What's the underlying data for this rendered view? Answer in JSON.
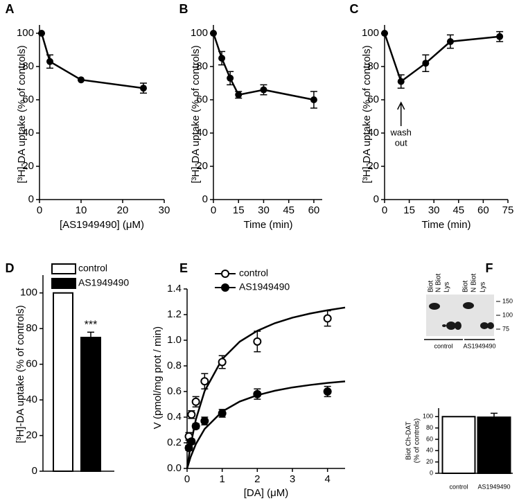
{
  "chart_data": [
    {
      "panel": "A",
      "type": "line",
      "ylabel": "[³H]-DA uptake (% of controls)",
      "xlabel": "[AS1949490] (μM)",
      "x": [
        0.5,
        2.5,
        10,
        25
      ],
      "values": [
        100,
        83,
        72,
        67
      ],
      "errors": [
        0,
        4,
        0,
        3
      ],
      "color": "#000000",
      "xlim": [
        0,
        30
      ],
      "ylim": [
        0,
        105
      ],
      "xticks": [
        0,
        10,
        20,
        30
      ],
      "yticks": [
        0,
        20,
        40,
        60,
        80,
        100
      ]
    },
    {
      "panel": "B",
      "type": "line",
      "ylabel": "[³H]-DA uptake (% of controls)",
      "xlabel": "Time (min)",
      "x": [
        0,
        5,
        10,
        15,
        30,
        60
      ],
      "values": [
        100,
        85,
        73,
        63,
        66,
        60
      ],
      "errors": [
        0,
        4,
        4,
        2,
        3,
        5
      ],
      "color": "#000000",
      "xlim": [
        0,
        65
      ],
      "ylim": [
        0,
        105
      ],
      "xticks": [
        0,
        15,
        30,
        45,
        60
      ],
      "yticks": [
        0,
        20,
        40,
        60,
        80,
        100
      ]
    },
    {
      "panel": "C",
      "type": "line",
      "ylabel": "[³H]-DA uptake (% of controls)",
      "xlabel": "Time (min)",
      "x": [
        0,
        10,
        25,
        40,
        70
      ],
      "values": [
        100,
        71,
        82,
        95,
        98
      ],
      "errors": [
        0,
        4,
        5,
        4,
        3
      ],
      "color": "#000000",
      "annotation": [
        "wash",
        "out"
      ],
      "xlim": [
        0,
        75
      ],
      "ylim": [
        0,
        105
      ],
      "xticks": [
        0,
        15,
        30,
        45,
        60,
        75
      ],
      "yticks": [
        0,
        20,
        40,
        60,
        80,
        100
      ]
    },
    {
      "panel": "D",
      "type": "bar",
      "ylabel": "[³H]-DA uptake (% of controls)",
      "categories": [
        "control",
        "AS1949490"
      ],
      "values": [
        100,
        75
      ],
      "errors": [
        0,
        3
      ],
      "colors": [
        "#ffffff",
        "#000000"
      ],
      "legend": true,
      "annotation": "***",
      "ylim": [
        0,
        110
      ],
      "yticks": [
        0,
        20,
        40,
        60,
        80,
        100
      ]
    },
    {
      "panel": "E",
      "type": "scatter",
      "ylabel": "V (pmol/mg prot / min)",
      "xlabel": "[DA] (μM)",
      "fit_x": [
        0,
        0.1,
        0.25,
        0.5,
        1,
        1.5,
        2,
        2.5,
        3,
        3.5,
        4,
        4.5
      ],
      "series": [
        {
          "name": "control",
          "color": "#ffffff",
          "x": [
            0.05,
            0.125,
            0.25,
            0.5,
            1,
            2,
            4
          ],
          "values": [
            0.25,
            0.42,
            0.52,
            0.68,
            0.83,
            0.99,
            1.17
          ],
          "errors": [
            0.03,
            0.03,
            0.04,
            0.06,
            0.05,
            0.08,
            0.06
          ],
          "fit": [
            0,
            0.181,
            0.382,
            0.604,
            0.853,
            0.989,
            1.074,
            1.133,
            1.176,
            1.208,
            1.234,
            1.255
          ]
        },
        {
          "name": "AS1949490",
          "color": "#000000",
          "x": [
            0.05,
            0.125,
            0.25,
            0.5,
            1,
            2,
            4
          ],
          "values": [
            0.16,
            0.21,
            0.33,
            0.37,
            0.43,
            0.58,
            0.6
          ],
          "errors": [
            0.02,
            0.02,
            0.02,
            0.03,
            0.03,
            0.04,
            0.04
          ],
          "fit": [
            0,
            0.089,
            0.19,
            0.308,
            0.444,
            0.522,
            0.571,
            0.606,
            0.632,
            0.651,
            0.667,
            0.679
          ]
        }
      ],
      "xlim": [
        0,
        4.5
      ],
      "ylim": [
        0,
        1.4
      ],
      "xticks": [
        0,
        1,
        2,
        3,
        4
      ],
      "yticks": [
        {
          "value": 0,
          "label": "0.0"
        },
        {
          "value": 0.2,
          "label": "0.2"
        },
        {
          "value": 0.4,
          "label": "0.4"
        },
        {
          "value": 0.6,
          "label": "0.6"
        },
        {
          "value": 0.8,
          "label": "0.8"
        },
        {
          "value": 1,
          "label": "1.0"
        },
        {
          "value": 1.2,
          "label": "1.2"
        },
        {
          "value": 1.4,
          "label": "1.4"
        }
      ]
    },
    {
      "panel": "F",
      "type": "bar",
      "ylabel": [
        "Biot Ch-DAT",
        "(% of controls)"
      ],
      "blot": {
        "lanes": [
          "Biot",
          "N Biot",
          "Lys",
          "Biot",
          "N Biot",
          "Lys"
        ],
        "markers": [
          150,
          100,
          75
        ],
        "groups": [
          "control",
          "AS1949490"
        ]
      },
      "categories": [
        "control",
        "AS1949490"
      ],
      "values": [
        100,
        99
      ],
      "errors": [
        0,
        7
      ],
      "colors": [
        "#ffffff",
        "#000000"
      ],
      "legend": false,
      "ylim": [
        0,
        115
      ],
      "yticks": [
        0,
        20,
        40,
        60,
        80,
        100
      ]
    }
  ]
}
